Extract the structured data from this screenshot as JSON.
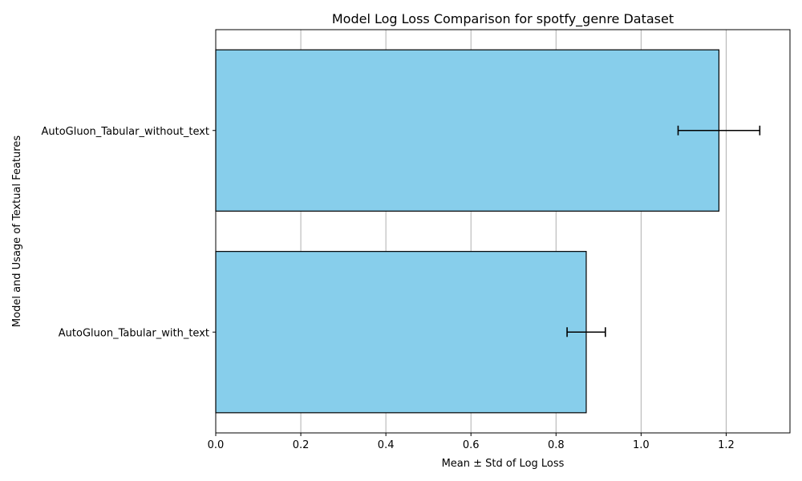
{
  "chart_data": {
    "type": "bar",
    "orientation": "horizontal",
    "title": "Model Log Loss Comparison for spotfy_genre Dataset",
    "xlabel": "Mean ± Std of Log Loss",
    "ylabel": "Model and Usage of Textual Features",
    "categories": [
      "AutoGluon_Tabular_without_text",
      "AutoGluon_Tabular_with_text"
    ],
    "values": [
      1.183,
      0.871
    ],
    "errors": [
      0.096,
      0.045
    ],
    "xlim": [
      0.0,
      1.35
    ],
    "xticks": [
      0.0,
      0.2,
      0.4,
      0.6,
      0.8,
      1.0,
      1.2
    ],
    "xtick_labels": [
      "0.0",
      "0.2",
      "0.4",
      "0.6",
      "0.8",
      "1.0",
      "1.2"
    ],
    "grid": "x",
    "colors": {
      "bar": "#87ceeb",
      "edge": "#000000",
      "grid": "#b0b0b0",
      "error": "#000000"
    }
  }
}
